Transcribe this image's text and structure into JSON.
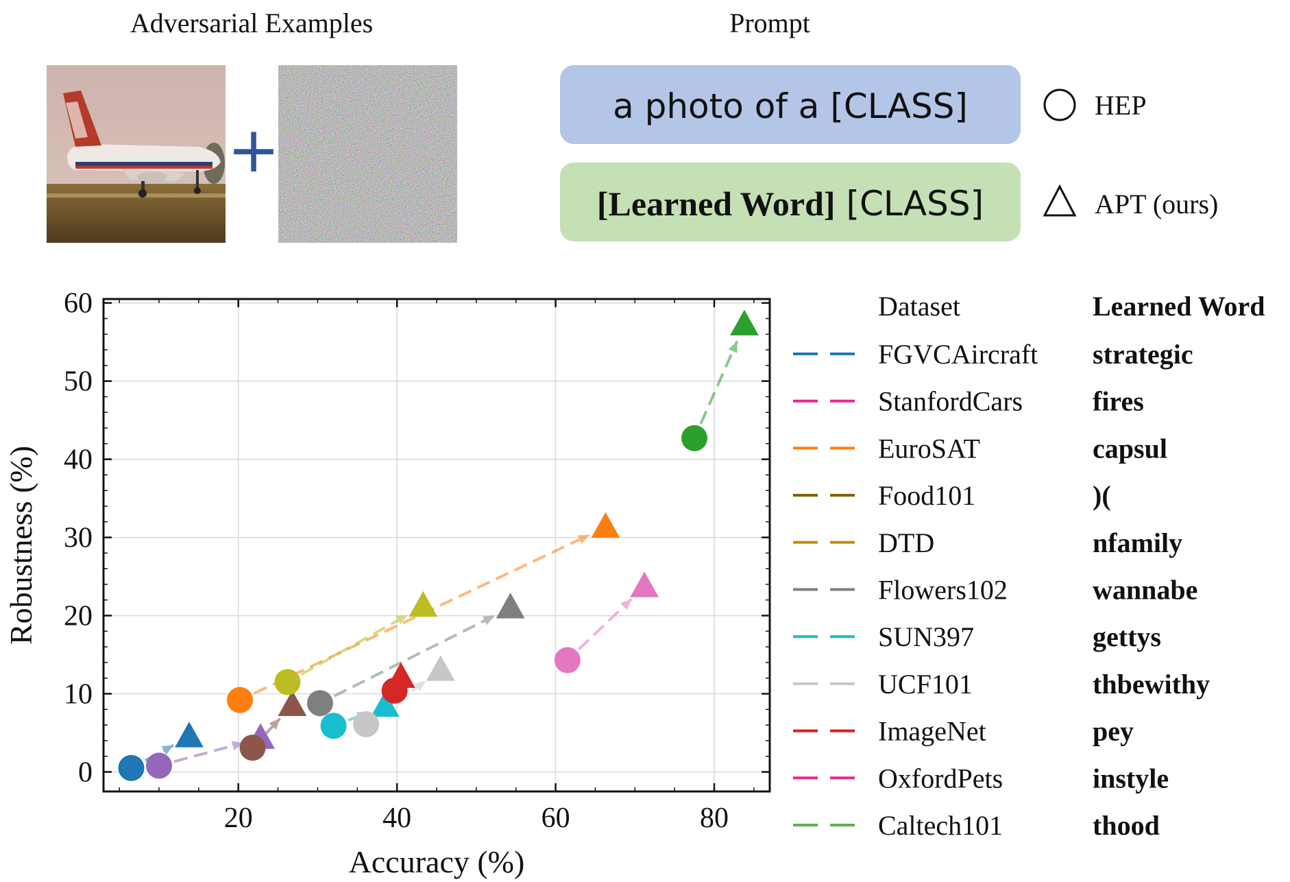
{
  "header": {
    "adversarial_title": "Adversarial Examples",
    "prompt_title": "Prompt",
    "plus_symbol": "+",
    "hep_prompt": "a photo of a [CLASS]",
    "apt_prompt_bold": "[Learned Word]",
    "apt_prompt_rest": " [CLASS]",
    "hep_label": "HEP",
    "apt_label": "APT (ours)",
    "hep_prompt_color": "#b4c6e7",
    "apt_prompt_color": "#c5e0b4"
  },
  "chart_data": {
    "type": "scatter",
    "xlabel": "Accuracy (%)",
    "ylabel": "Robustness (%)",
    "xlim": [
      3,
      87
    ],
    "ylim": [
      -2.5,
      60.5
    ],
    "xticks": [
      "20",
      "40",
      "60",
      "80"
    ],
    "xtick_values": [
      20,
      40,
      60,
      80
    ],
    "yticks": [
      "0",
      "10",
      "20",
      "30",
      "40",
      "50",
      "60"
    ],
    "ytick_values": [
      0,
      10,
      20,
      30,
      40,
      50,
      60
    ],
    "grid": true,
    "legend_header": {
      "dataset": "Dataset",
      "word": "Learned Word"
    },
    "series": [
      {
        "name": "FGVCAircraft",
        "word": "strategic",
        "color": "#1f77b4",
        "hep": [
          6.5,
          0.5
        ],
        "apt": [
          13.8,
          4.5
        ]
      },
      {
        "name": "StanfordCars",
        "word": "fires",
        "color": "#9467bd",
        "hep": [
          10.0,
          0.8
        ],
        "apt": [
          22.8,
          4.3
        ]
      },
      {
        "name": "EuroSAT",
        "word": "capsul",
        "color": "#ff7f0e",
        "hep": [
          20.2,
          9.2
        ],
        "apt": [
          66.3,
          31.3
        ]
      },
      {
        "name": "Food101",
        "word": ")(",
        "color": "#8c564b",
        "hep": [
          21.8,
          3.1
        ],
        "apt": [
          26.8,
          8.5
        ]
      },
      {
        "name": "DTD",
        "word": "nfamily",
        "color": "#bcbd22",
        "hep": [
          26.2,
          11.5
        ],
        "apt": [
          43.3,
          21.2
        ]
      },
      {
        "name": "Flowers102",
        "word": "wannabe",
        "color": "#7f7f7f",
        "hep": [
          30.3,
          8.8
        ],
        "apt": [
          54.3,
          21.0
        ]
      },
      {
        "name": "SUN397",
        "word": "gettys",
        "color": "#17becf",
        "hep": [
          32.0,
          5.9
        ],
        "apt": [
          38.5,
          8.4
        ]
      },
      {
        "name": "UCF101",
        "word": "thbewithy",
        "color": "#c7c7c7",
        "hep": [
          36.1,
          6.1
        ],
        "apt": [
          45.5,
          13.0
        ]
      },
      {
        "name": "ImageNet",
        "word": "pey",
        "color": "#d62728",
        "hep": [
          39.7,
          10.4
        ],
        "apt": [
          40.5,
          12.1
        ]
      },
      {
        "name": "OxfordPets",
        "word": "instyle",
        "color": "#e377c2",
        "hep": [
          61.5,
          14.3
        ],
        "apt": [
          71.2,
          23.7
        ]
      },
      {
        "name": "Caltech101",
        "word": "thood",
        "color": "#2ca02c",
        "hep": [
          77.5,
          42.7
        ],
        "apt": [
          83.8,
          57.2
        ]
      }
    ],
    "legend_line_colors": [
      "#1f77b4",
      "#e7298a",
      "#ff7f0e",
      "#7f6000",
      "#bf9000",
      "#7f7f7f",
      "#17becf",
      "#c7c7c7",
      "#e31a1c",
      "#e7298a",
      "#5ab34a"
    ]
  }
}
